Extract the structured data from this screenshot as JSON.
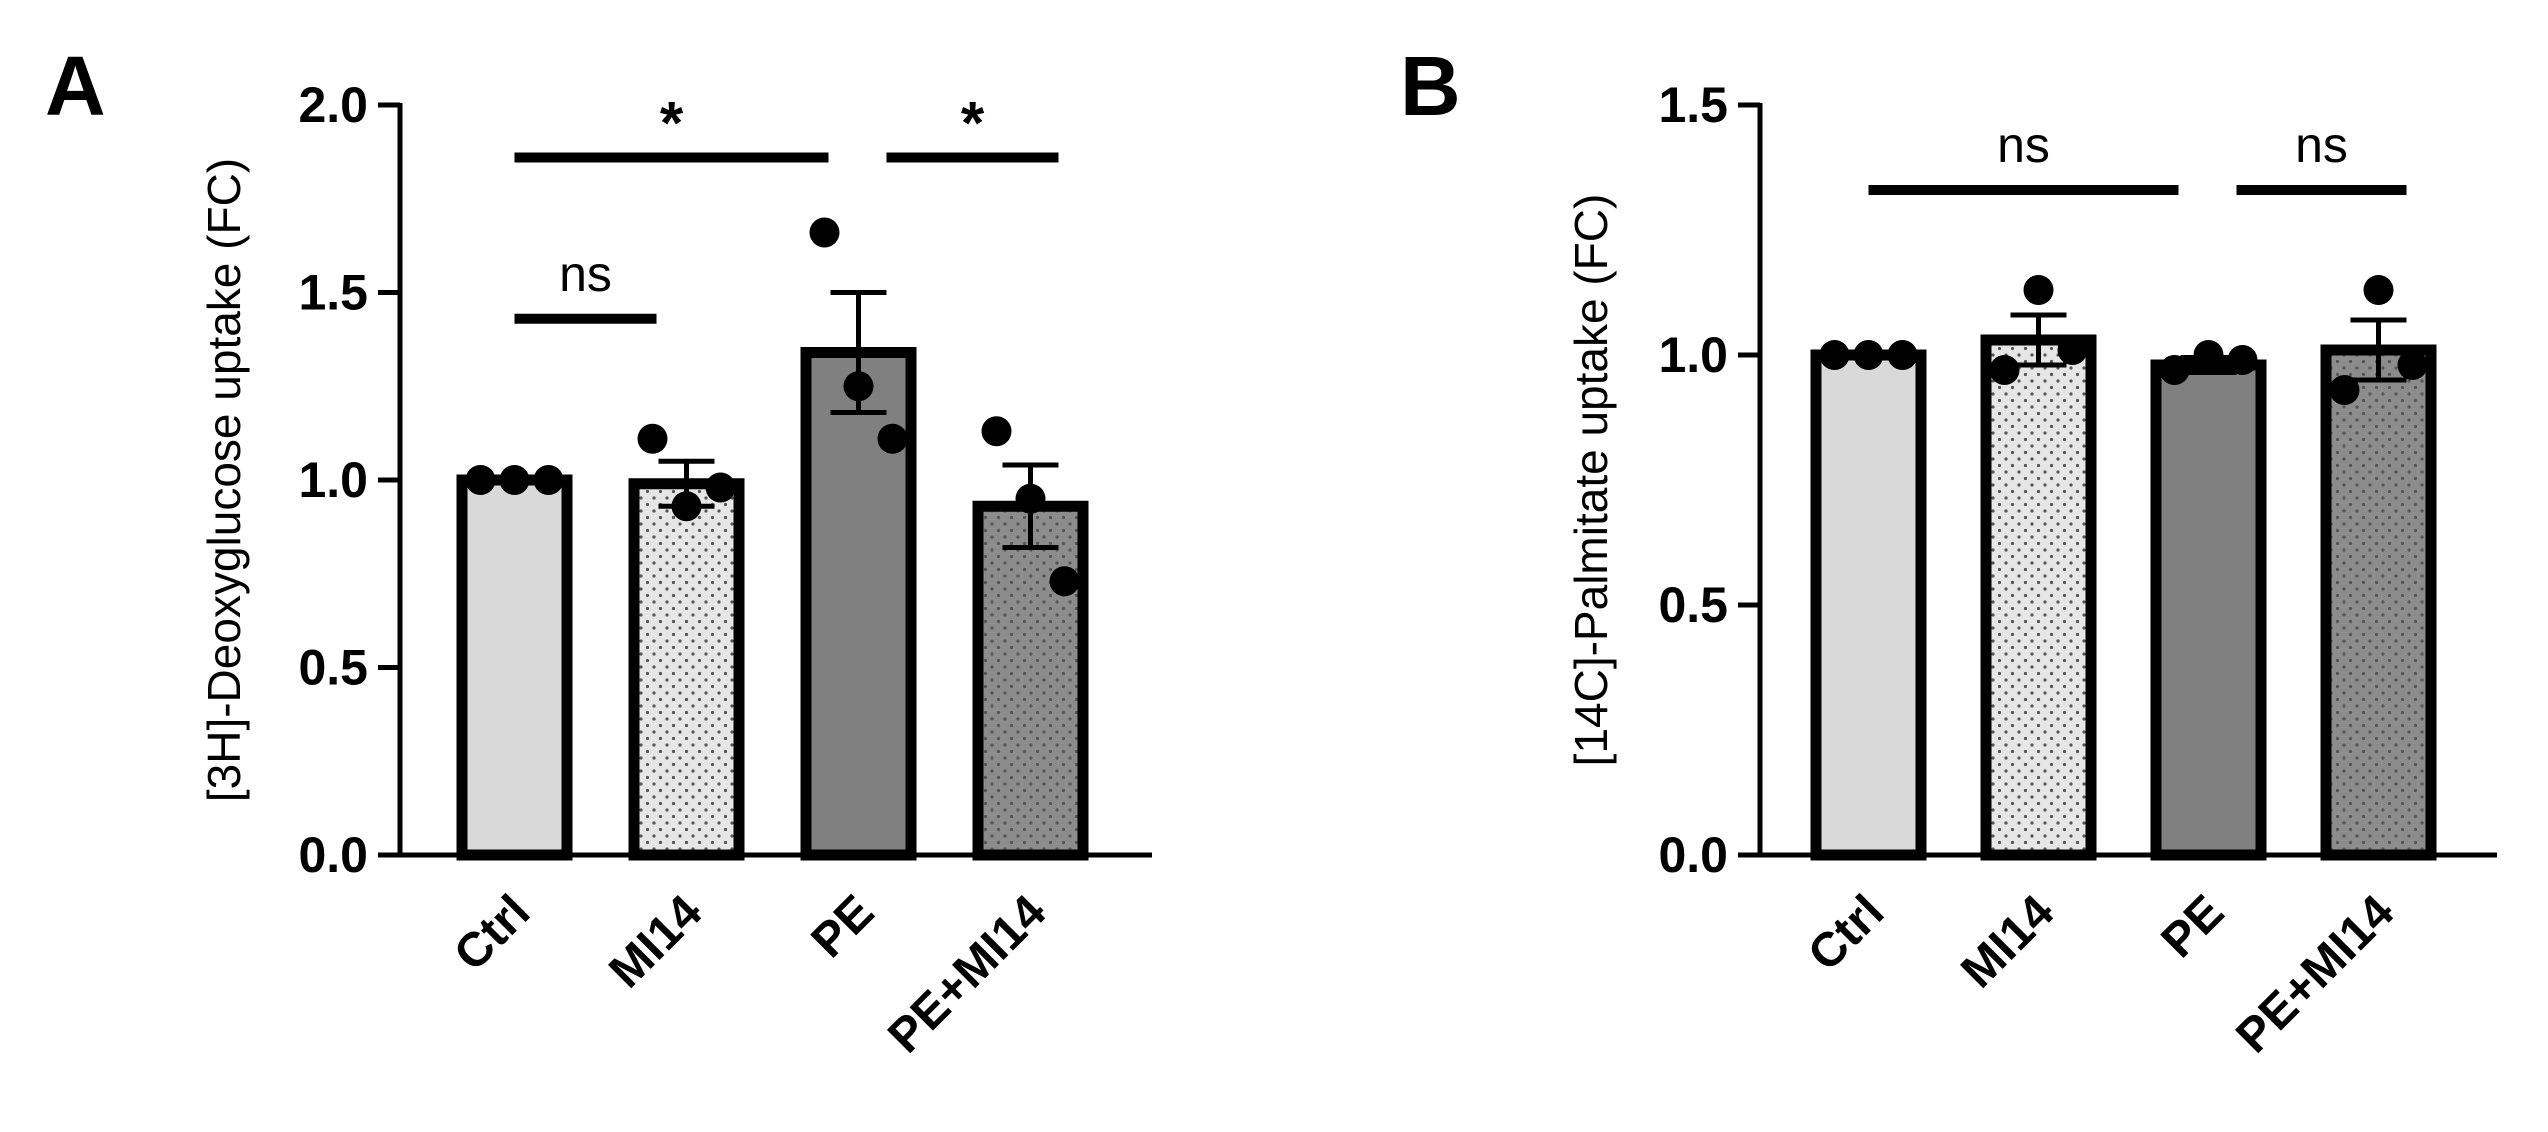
{
  "chart_data": [
    {
      "type": "bar",
      "panel_label": "A",
      "ylabel": "[3H]-Deoxyglucose uptake (FC)",
      "ylim": [
        0,
        2.0
      ],
      "yticks": [
        "0.0",
        "0.5",
        "1.0",
        "1.5",
        "2.0"
      ],
      "categories": [
        "Ctrl",
        "MI14",
        "PE",
        "PE+MI14"
      ],
      "means": [
        1.0,
        0.99,
        1.34,
        0.93
      ],
      "sem": [
        0,
        0.06,
        0.16,
        0.11
      ],
      "points": [
        [
          1.0,
          1.0,
          1.0
        ],
        [
          1.11,
          0.93,
          0.98
        ],
        [
          1.66,
          1.25,
          1.11
        ],
        [
          1.13,
          0.95,
          0.73
        ]
      ],
      "fills": [
        "#d9d9d9",
        "#e6e6e6",
        "#808080",
        "#8c8c8c"
      ],
      "dotted": [
        false,
        true,
        false,
        true
      ],
      "significance": [
        {
          "from": 0,
          "to": 1,
          "label": "ns",
          "y": 1.43
        },
        {
          "from": 0,
          "to": 2,
          "label": "*",
          "y": 1.86
        },
        {
          "from": 2,
          "to": 3,
          "label": "*",
          "y": 1.86
        }
      ]
    },
    {
      "type": "bar",
      "panel_label": "B",
      "ylabel": "[14C]-Palmitate uptake (FC)",
      "ylim": [
        0,
        1.5
      ],
      "yticks": [
        "0.0",
        "0.5",
        "1.0",
        "1.5"
      ],
      "categories": [
        "Ctrl",
        "MI14",
        "PE",
        "PE+MI14"
      ],
      "means": [
        1.0,
        1.03,
        0.98,
        1.01
      ],
      "sem": [
        0,
        0.05,
        0.015,
        0.06
      ],
      "points": [
        [
          1.0,
          1.0,
          1.0
        ],
        [
          0.97,
          1.13,
          1.01
        ],
        [
          0.97,
          1.0,
          0.99
        ],
        [
          0.93,
          1.13,
          0.98
        ]
      ],
      "fills": [
        "#d9d9d9",
        "#e6e6e6",
        "#808080",
        "#8c8c8c"
      ],
      "dotted": [
        false,
        true,
        false,
        true
      ],
      "significance": [
        {
          "from": 0,
          "to": 2,
          "label": "ns",
          "y": 1.33
        },
        {
          "from": 2,
          "to": 3,
          "label": "ns",
          "y": 1.33
        }
      ]
    }
  ]
}
